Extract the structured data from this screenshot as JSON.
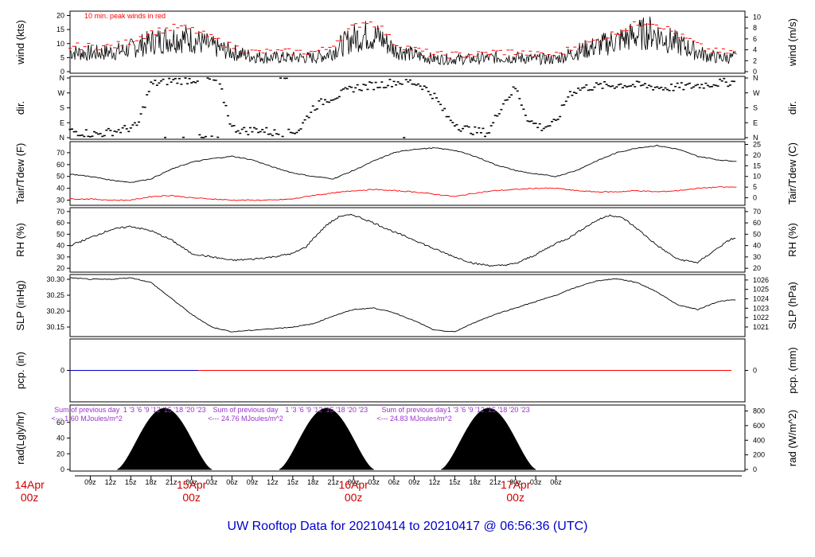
{
  "title": "UW Rooftop Data for 20210414  to  20210417 @ 06:56:36  (UTC)",
  "colors": {
    "frame": "#000000",
    "wind": "#000000",
    "gust": "#ff0000",
    "tair": "#000000",
    "tdew": "#ff0000",
    "precip_measured": "#0000cc",
    "precip_flat": "#ff0000",
    "rad_text": "#9933cc",
    "date_label": "#cc0000",
    "title": "#0000cc"
  },
  "x_axis": {
    "time_labels": [
      "09z",
      "12z",
      "15z",
      "18z",
      "21z",
      "00z",
      "03z",
      "06z",
      "09z",
      "12z",
      "15z",
      "18z",
      "21z",
      "00z",
      "03z",
      "06z",
      "09z",
      "12z",
      "15z",
      "18z",
      "21z",
      "00z",
      "03z",
      "06z"
    ],
    "day_labels": [
      {
        "date": "14Apr",
        "time": "00z"
      },
      {
        "date": "15Apr",
        "time": "00z"
      },
      {
        "date": "16Apr",
        "time": "00z"
      },
      {
        "date": "17Apr",
        "time": "00z"
      }
    ]
  },
  "chart_data": [
    {
      "type": "line",
      "name": "wind",
      "ylabel_left": "wind (kts)",
      "ylabel_right": "wind (m/s)",
      "yticks_left": [
        "0",
        "5",
        "10",
        "15",
        "20"
      ],
      "yticks_right": [
        "0",
        "2",
        "4",
        "6",
        "8",
        "10"
      ],
      "ylim": [
        0,
        21
      ],
      "annotation": "10 min. peak winds in red",
      "x_hours": [
        6,
        9,
        12,
        14,
        16,
        18,
        20,
        22,
        24,
        27,
        30,
        33,
        36,
        39,
        42,
        44,
        46,
        48,
        50,
        52,
        54,
        57,
        60,
        63,
        66,
        69,
        72,
        75,
        78,
        81,
        84,
        87,
        90,
        92,
        94,
        96,
        98,
        100,
        102,
        104
      ],
      "values": [
        7,
        6.5,
        7,
        7.5,
        9,
        10.5,
        11.5,
        12,
        11.5,
        9,
        7,
        5.5,
        5,
        5,
        5,
        6,
        9,
        12,
        13,
        12,
        8,
        6,
        4.5,
        4.5,
        4.5,
        5,
        5,
        4.5,
        4.5,
        7,
        9,
        11,
        13,
        14,
        12,
        10,
        8,
        6,
        5,
        5
      ],
      "gust_values": [
        9,
        9,
        9,
        10,
        12,
        14,
        15,
        16,
        15,
        12,
        9,
        7,
        7,
        7,
        7,
        8,
        12,
        16,
        18,
        16,
        10,
        8,
        6,
        6,
        6,
        7,
        7,
        6,
        6,
        9,
        11,
        14,
        17,
        18,
        16,
        13,
        11,
        8,
        7,
        7
      ]
    },
    {
      "type": "scatter",
      "name": "wind direction",
      "ylabel_left": "dir.",
      "ylabel_right": "dir.",
      "yticks_left": [
        "N",
        "E",
        "S",
        "W",
        "N"
      ],
      "yticks_right": [
        "N",
        "E",
        "S",
        "W",
        "N"
      ],
      "ylim": [
        0,
        360
      ],
      "x_hours": [
        6,
        8,
        10,
        12,
        14,
        16,
        18,
        20,
        22,
        24,
        26,
        28,
        30,
        32,
        34,
        36,
        38,
        40,
        42,
        44,
        46,
        48,
        50,
        52,
        54,
        56,
        58,
        60,
        62,
        64,
        66,
        68,
        70,
        72,
        74,
        76,
        78,
        80,
        82,
        84,
        86,
        88,
        90,
        92,
        94,
        96,
        98,
        100,
        102,
        104
      ],
      "values": [
        40,
        30,
        20,
        35,
        50,
        70,
        320,
        340,
        345,
        350,
        355,
        340,
        60,
        40,
        50,
        30,
        20,
        50,
        180,
        230,
        260,
        300,
        310,
        320,
        335,
        340,
        320,
        250,
        120,
        60,
        40,
        30,
        200,
        300,
        100,
        60,
        90,
        270,
        300,
        310,
        315,
        320,
        315,
        310,
        300,
        305,
        310,
        320,
        330,
        335
      ]
    },
    {
      "type": "line",
      "name": "temperature",
      "ylabel_left": "Tair/Tdew (F)",
      "ylabel_right": "Tair/Tdew (C)",
      "yticks_left": [
        "30",
        "40",
        "50",
        "60",
        "70"
      ],
      "yticks_right": [
        "0",
        "5",
        "10",
        "15",
        "20",
        "25"
      ],
      "ylim": [
        27,
        78
      ],
      "x_hours": [
        6,
        9,
        12,
        15,
        18,
        21,
        24,
        27,
        30,
        33,
        36,
        39,
        42,
        45,
        48,
        51,
        54,
        57,
        60,
        63,
        66,
        69,
        72,
        75,
        78,
        81,
        84,
        87,
        90,
        93,
        96,
        99,
        102,
        104
      ],
      "series": [
        {
          "values": [
            52,
            50,
            47,
            45,
            48,
            56,
            62,
            65,
            67,
            64,
            58,
            53,
            50,
            48,
            55,
            63,
            70,
            73,
            74,
            72,
            67,
            60,
            55,
            52,
            50,
            55,
            63,
            70,
            74,
            76,
            73,
            67,
            64,
            63
          ]
        },
        {
          "values": [
            31,
            31,
            30,
            30,
            33,
            34,
            32,
            31,
            30,
            30,
            30,
            31,
            34,
            36,
            38,
            39,
            38,
            37,
            35,
            33,
            36,
            38,
            39,
            40,
            40,
            38,
            37,
            37,
            38,
            37,
            38,
            40,
            41,
            41
          ]
        }
      ]
    },
    {
      "type": "line",
      "name": "relative humidity",
      "ylabel_left": "RH (%)",
      "ylabel_right": "RH (%)",
      "yticks_left": [
        "20",
        "30",
        "40",
        "50",
        "60",
        "70"
      ],
      "yticks_right": [
        "20",
        "30",
        "40",
        "50",
        "60",
        "70"
      ],
      "ylim": [
        18,
        72
      ],
      "x_hours": [
        6,
        9,
        12,
        15,
        18,
        21,
        24,
        27,
        30,
        33,
        36,
        39,
        41,
        42,
        44,
        46,
        48,
        51,
        54,
        57,
        60,
        63,
        66,
        69,
        72,
        75,
        78,
        80,
        82,
        84,
        86,
        88,
        90,
        93,
        96,
        99,
        102,
        104
      ],
      "values": [
        40,
        47,
        54,
        57,
        53,
        45,
        33,
        30,
        27,
        28,
        30,
        33,
        39,
        46,
        58,
        66,
        67,
        60,
        52,
        45,
        37,
        30,
        24,
        22,
        24,
        32,
        42,
        47,
        55,
        62,
        67,
        64,
        55,
        40,
        28,
        25,
        38,
        46
      ]
    },
    {
      "type": "line",
      "name": "sea level pressure",
      "ylabel_left": "SLP (inHg)",
      "ylabel_right": "SLP (hPa)",
      "yticks_left": [
        "30.15",
        "30.20",
        "30.25",
        "30.30"
      ],
      "yticks_right": [
        "1021",
        "1022",
        "1023",
        "1024",
        "1025",
        "1026"
      ],
      "ylim": [
        30.125,
        30.31
      ],
      "x_hours": [
        6,
        9,
        12,
        15,
        18,
        21,
        24,
        27,
        30,
        33,
        36,
        39,
        42,
        45,
        48,
        51,
        54,
        57,
        60,
        63,
        66,
        69,
        72,
        75,
        78,
        81,
        84,
        87,
        90,
        93,
        96,
        99,
        102,
        104
      ],
      "values": [
        30.305,
        30.3,
        30.3,
        30.305,
        30.29,
        30.24,
        30.19,
        30.15,
        30.135,
        30.14,
        30.145,
        30.15,
        30.16,
        30.185,
        30.205,
        30.21,
        30.195,
        30.17,
        30.14,
        30.135,
        30.165,
        30.19,
        30.21,
        30.23,
        30.25,
        30.275,
        30.295,
        30.302,
        30.29,
        30.26,
        30.22,
        30.205,
        30.23,
        30.235
      ]
    },
    {
      "type": "line",
      "name": "precipitation",
      "ylabel_left": "pcp. (in)",
      "ylabel_right": "pcp. (mm)",
      "yticks_left": [
        "0"
      ],
      "yticks_right": [
        "0"
      ],
      "x_hours": [
        6,
        25,
        25,
        104
      ],
      "values": [
        0,
        0,
        0,
        0
      ]
    },
    {
      "type": "area",
      "name": "solar radiation",
      "ylabel_left": "rad(Lgly/hr)",
      "ylabel_right": "rad (W/m^2)",
      "yticks_left": [
        "0",
        "20",
        "40",
        "60"
      ],
      "yticks_right": [
        "0",
        "200",
        "400",
        "600",
        "800"
      ],
      "ylim": [
        0,
        860
      ],
      "days": [
        {
          "sunrise_hour": 13,
          "sunset_hour": 27,
          "peak": 835
        },
        {
          "sunrise_hour": 37,
          "sunset_hour": 51,
          "peak": 835
        },
        {
          "sunrise_hour": 61,
          "sunset_hour": 75,
          "peak": 835
        }
      ],
      "hour_marks": "1  '3  '6  '9  '12  '15  '18  '20  '23",
      "prev_day_totals": [
        {
          "label": "Sum of previous day",
          "value": "<--- 1.60 MJoules/m^2"
        },
        {
          "label": "Sum of previous day",
          "value": "<--- 24.76 MJoules/m^2"
        },
        {
          "label": "Sum of previous day",
          "value": "<--- 24.83 MJoules/m^2"
        }
      ]
    }
  ]
}
